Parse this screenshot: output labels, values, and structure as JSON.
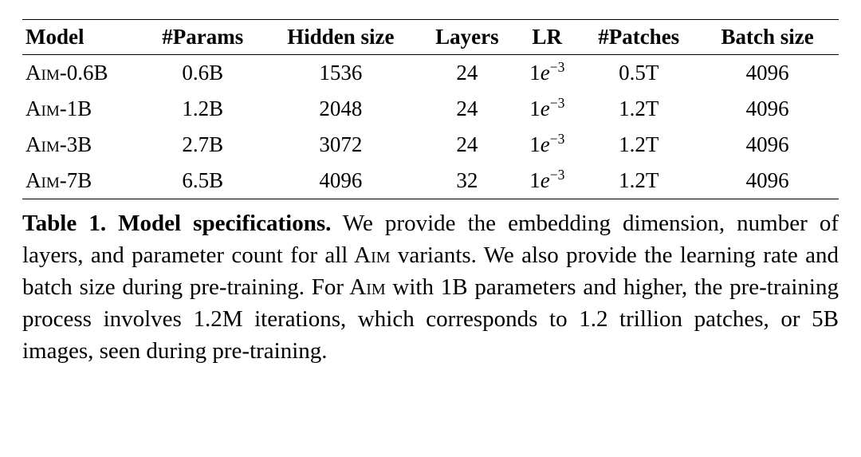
{
  "columns": {
    "c0": "Model",
    "c1": "#Params",
    "c2": "Hidden size",
    "c3": "Layers",
    "c4": "LR",
    "c5": "#Patches",
    "c6": "Batch size"
  },
  "rows": [
    {
      "model_prefix": "A",
      "model_sc": "im",
      "model_suffix": "-0.6B",
      "params": "0.6B",
      "hidden": "1536",
      "layers": "24",
      "lr_base": "1",
      "lr_e": "e",
      "lr_exp": "−3",
      "patches": "0.5T",
      "batch": "4096"
    },
    {
      "model_prefix": "A",
      "model_sc": "im",
      "model_suffix": "-1B",
      "params": "1.2B",
      "hidden": "2048",
      "layers": "24",
      "lr_base": "1",
      "lr_e": "e",
      "lr_exp": "−3",
      "patches": "1.2T",
      "batch": "4096"
    },
    {
      "model_prefix": "A",
      "model_sc": "im",
      "model_suffix": "-3B",
      "params": "2.7B",
      "hidden": "3072",
      "layers": "24",
      "lr_base": "1",
      "lr_e": "e",
      "lr_exp": "−3",
      "patches": "1.2T",
      "batch": "4096"
    },
    {
      "model_prefix": "A",
      "model_sc": "im",
      "model_suffix": "-7B",
      "params": "6.5B",
      "hidden": "4096",
      "layers": "32",
      "lr_base": "1",
      "lr_e": "e",
      "lr_exp": "−3",
      "patches": "1.2T",
      "batch": "4096"
    }
  ],
  "caption": {
    "label": "Table 1.",
    "title": "Model specifications.",
    "seg1": " We provide the embedding dimension, number of layers, and parameter count for all A",
    "sc1": "im",
    "seg2": " variants. We also provide the learning rate and batch size during pre-training. For A",
    "sc2": "im",
    "seg3": " with 1B parameters and higher, the pre-training process involves 1.2M iterations, which corresponds to 1.2 trillion patches, or 5B images, seen during pre-training."
  }
}
